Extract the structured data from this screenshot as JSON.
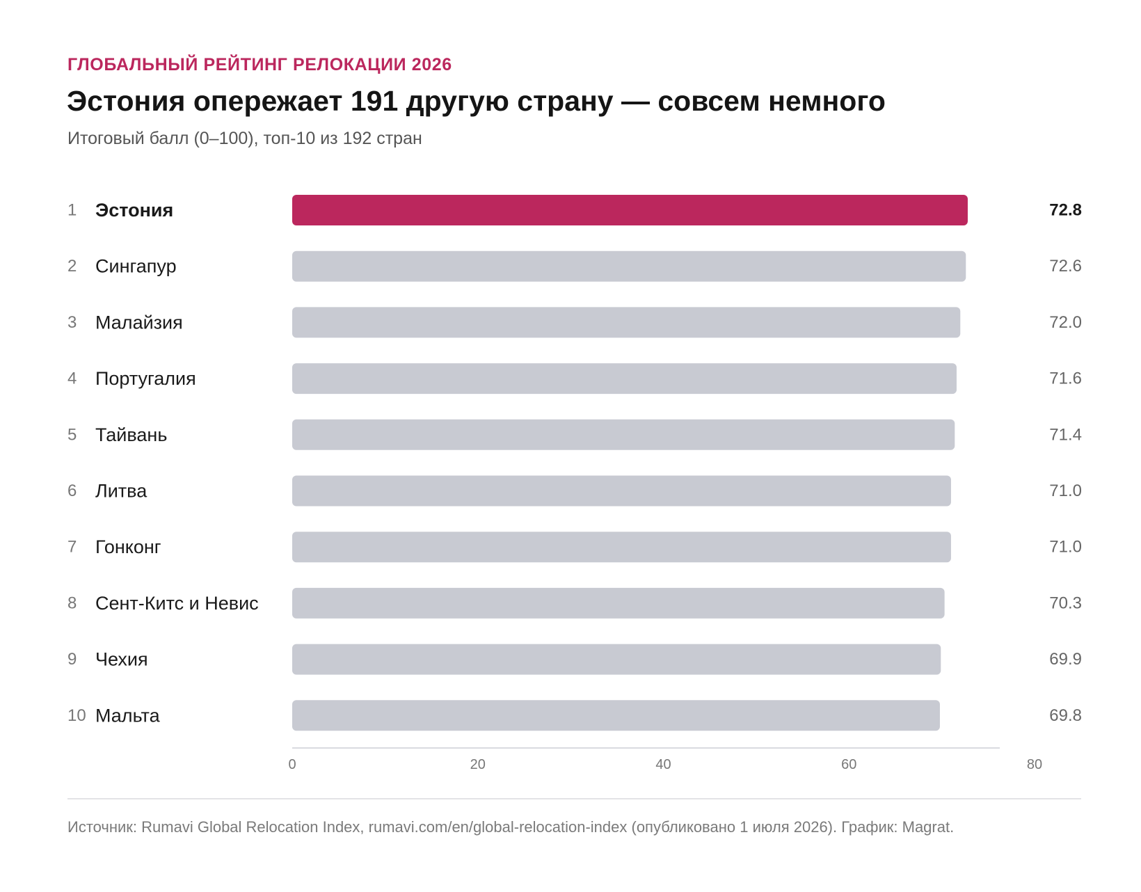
{
  "kicker": "ГЛОБАЛЬНЫЙ РЕЙТИНГ РЕЛОКАЦИИ 2026",
  "title": "Эстония опережает 191 другую страну — совсем немного",
  "subtitle": "Итоговый балл (0–100), топ-10 из 192 стран",
  "source": "Источник: Rumavi Global Relocation Index, rumavi.com/en/global-relocation-index (опубликовано 1 июля 2026). График: Magrat.",
  "colors": {
    "highlight": "#bb275d",
    "bar": "#c8cad2",
    "axis": "#d9dbe0",
    "rank": "#777777",
    "tick": "#777777",
    "value": "#666666",
    "text": "#1a1a1a"
  },
  "chart_data": {
    "type": "bar",
    "orientation": "horizontal",
    "ranks": [
      "1",
      "2",
      "3",
      "4",
      "5",
      "6",
      "7",
      "8",
      "9",
      "10"
    ],
    "categories": [
      "Эстония",
      "Сингапур",
      "Малайзия",
      "Португалия",
      "Тайвань",
      "Литва",
      "Гонконг",
      "Сент-Китс и Невис",
      "Чехия",
      "Мальта"
    ],
    "values": [
      72.8,
      72.6,
      72.0,
      71.6,
      71.4,
      71.0,
      71.0,
      70.3,
      69.9,
      69.8
    ],
    "value_labels": [
      "72.8",
      "72.6",
      "72.0",
      "71.6",
      "71.4",
      "71.0",
      "71.0",
      "70.3",
      "69.9",
      "69.8"
    ],
    "highlight": "Эстония",
    "xlim": [
      0,
      80
    ],
    "xticks": [
      0,
      20,
      40,
      60,
      80
    ],
    "xlabel": "",
    "ylabel": "",
    "grid": false,
    "legend": "none"
  }
}
